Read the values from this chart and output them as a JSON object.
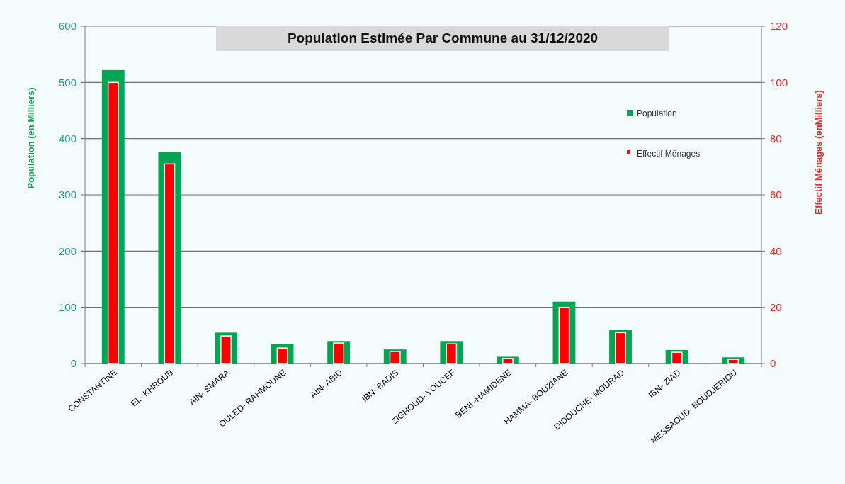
{
  "chart_data": {
    "type": "bar",
    "title": "Population Estimée Par Commune au 31/12/2020",
    "ylabel": "Population (en Milliers)",
    "y2label": "Effectif Ménages (enMilliers)",
    "categories": [
      "CONSTANTINE",
      "EL- KHROUB",
      "AIN- SMARA",
      "OULED- RAHMOUNE",
      "AIN- ABID",
      "IBN- BADIS",
      "ZIGHOUD- YOUCEF",
      "BENI -HAMIDENE",
      "HAMMA- BOUZIANE",
      "DIDOUCHE- MOURAD",
      "IBN- ZIAD",
      "MESSAOUD- BOUDJERIOU"
    ],
    "series": [
      {
        "name": "Population",
        "color": "#00a651",
        "values": [
          522,
          376,
          55,
          34,
          40,
          25,
          40,
          12,
          110,
          60,
          24,
          11
        ]
      },
      {
        "name": "Effectif Ménages",
        "color": "#ff0000",
        "axis": "y2",
        "values": [
          100,
          71,
          9.8,
          5.5,
          7.3,
          4.3,
          7,
          1.8,
          20,
          11,
          4,
          1.5
        ]
      }
    ],
    "ylim": [
      0,
      600
    ],
    "yticks": [
      0,
      100,
      200,
      300,
      400,
      500,
      600
    ],
    "y2lim": [
      0,
      120
    ],
    "y2ticks": [
      0,
      20,
      40,
      60,
      80,
      100,
      120
    ],
    "grid": "y",
    "legend": "top right"
  }
}
